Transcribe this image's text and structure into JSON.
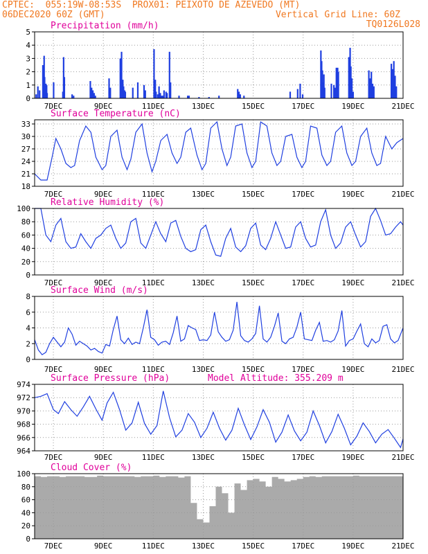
{
  "header": {
    "line1": "CPTEC:  055:19W-08:53S  PROX01: PEIXOTO DE AZEVEDO (MT)",
    "line2_left": "06DEC2020 60Z (GMT)",
    "line2_right": "Vertical Grid Line: 60Z",
    "line3_right": "TQ0126L028"
  },
  "colors": {
    "header": "#f07820",
    "title": "#e0009a",
    "series": "#1f3fe0",
    "cloud": "#aaaaaa",
    "grid": "#999999"
  },
  "chart_data": [
    {
      "type": "bar",
      "title": "Precipitation (mm/h)",
      "ylim": [
        0,
        5
      ],
      "yticks": [
        0,
        1,
        2,
        3,
        4,
        5
      ],
      "xlim": [
        6.25,
        21.0
      ],
      "xtick_labels": [
        "7DEC",
        "9DEC",
        "11DEC",
        "13DEC",
        "15DEC",
        "17DEC",
        "19DEC",
        "21DEC"
      ],
      "x": [
        6.28,
        6.35,
        6.42,
        6.55,
        6.6,
        6.62,
        6.67,
        6.7,
        6.72,
        6.98,
        7.35,
        7.38,
        7.41,
        7.72,
        7.78,
        8.45,
        8.5,
        8.55,
        8.6,
        8.65,
        9.2,
        9.25,
        9.65,
        9.7,
        9.75,
        9.78,
        9.82,
        9.85,
        10.15,
        10.35,
        10.6,
        10.65,
        11.0,
        11.05,
        11.08,
        11.15,
        11.2,
        11.25,
        11.3,
        11.35,
        11.4,
        11.48,
        11.52,
        11.62,
        11.66,
        12.0,
        12.35,
        12.4,
        12.8,
        13.2,
        13.6,
        14.35,
        14.4,
        14.45,
        14.6,
        16.45,
        16.75,
        16.85,
        16.95,
        17.68,
        17.71,
        17.74,
        17.77,
        17.8,
        17.83,
        18.1,
        18.2,
        18.25,
        18.3,
        18.32,
        18.35,
        18.38,
        18.8,
        18.85,
        18.88,
        18.92,
        18.97,
        19.6,
        19.65,
        19.7,
        19.75,
        19.8,
        20.5,
        20.55,
        20.6,
        20.65,
        20.7
      ],
      "values": [
        0.3,
        0.9,
        0.6,
        2.5,
        3.2,
        1.6,
        1.1,
        1.0,
        0.4,
        1.2,
        0.5,
        3.1,
        1.6,
        0.3,
        0.2,
        1.3,
        0.8,
        0.6,
        0.4,
        0.2,
        1.5,
        0.8,
        3.0,
        3.5,
        1.4,
        0.9,
        0.6,
        0.5,
        0.8,
        1.2,
        1.0,
        0.6,
        3.7,
        1.4,
        0.5,
        0.3,
        0.9,
        0.4,
        0.2,
        0.2,
        0.6,
        0.5,
        0.4,
        3.5,
        1.2,
        0.2,
        0.2,
        0.2,
        0.1,
        0.1,
        0.2,
        0.7,
        0.5,
        0.3,
        0.2,
        0.5,
        0.7,
        1.1,
        0.3,
        3.6,
        2.8,
        2.1,
        1.2,
        1.8,
        0.8,
        1.1,
        1.0,
        0.8,
        2.3,
        1.7,
        2.3,
        2.0,
        3.1,
        3.8,
        2.4,
        1.5,
        0.5,
        2.1,
        1.5,
        2.0,
        1.1,
        0.9,
        2.6,
        2.2,
        2.8,
        1.7,
        0.9
      ]
    },
    {
      "type": "line",
      "title": "Surface Temperature (nC)",
      "ylim": [
        18,
        34
      ],
      "yticks": [
        18,
        21,
        24,
        27,
        30,
        33
      ],
      "xlim": [
        6.25,
        21.0
      ],
      "xtick_labels": [
        "7DEC",
        "9DEC",
        "11DEC",
        "13DEC",
        "15DEC",
        "17DEC",
        "19DEC",
        "21DEC"
      ],
      "x": [
        6.25,
        6.5,
        6.75,
        6.95,
        7.1,
        7.3,
        7.5,
        7.7,
        7.85,
        8.05,
        8.3,
        8.5,
        8.7,
        8.95,
        9.1,
        9.3,
        9.55,
        9.75,
        9.95,
        10.1,
        10.3,
        10.55,
        10.75,
        10.95,
        11.1,
        11.3,
        11.55,
        11.75,
        11.95,
        12.1,
        12.3,
        12.5,
        12.75,
        12.95,
        13.1,
        13.3,
        13.55,
        13.75,
        13.95,
        14.1,
        14.3,
        14.55,
        14.75,
        14.95,
        15.1,
        15.3,
        15.55,
        15.75,
        15.95,
        16.1,
        16.3,
        16.55,
        16.75,
        16.95,
        17.1,
        17.3,
        17.55,
        17.75,
        17.95,
        18.1,
        18.3,
        18.55,
        18.75,
        18.95,
        19.1,
        19.3,
        19.55,
        19.75,
        19.95,
        20.1,
        20.3,
        20.55,
        20.75,
        21.0
      ],
      "values": [
        21,
        19.5,
        19.5,
        25,
        29.5,
        27,
        23.5,
        22.5,
        23,
        29,
        32.5,
        31,
        25,
        22,
        23,
        30,
        31.5,
        25,
        22,
        24.5,
        31,
        33,
        26,
        21.5,
        24,
        29,
        30.5,
        26,
        23.5,
        25,
        31,
        32,
        25.5,
        22,
        23.5,
        32,
        33.5,
        27,
        23,
        25,
        32.5,
        33,
        26,
        22.5,
        24,
        33.5,
        32.5,
        26,
        23,
        24,
        30,
        30.5,
        25,
        22.5,
        24,
        32.5,
        32,
        25.5,
        23,
        24,
        31,
        32.5,
        26,
        23,
        24,
        30,
        32,
        26,
        23,
        23.5,
        30,
        27,
        28.5,
        29.5
      ]
    },
    {
      "type": "line",
      "title": "Relative Humidity (%)",
      "ylim": [
        0,
        100
      ],
      "yticks": [
        0,
        20,
        40,
        60,
        80,
        100
      ],
      "xlim": [
        6.25,
        21.0
      ],
      "xtick_labels": [
        "7DEC",
        "9DEC",
        "11DEC",
        "13DEC",
        "15DEC",
        "17DEC",
        "19DEC",
        "21DEC"
      ],
      "x": [
        6.25,
        6.5,
        6.7,
        6.9,
        7.1,
        7.3,
        7.5,
        7.7,
        7.9,
        8.1,
        8.3,
        8.5,
        8.7,
        8.9,
        9.1,
        9.3,
        9.5,
        9.7,
        9.9,
        10.1,
        10.3,
        10.5,
        10.7,
        10.9,
        11.1,
        11.3,
        11.5,
        11.7,
        11.9,
        12.1,
        12.3,
        12.5,
        12.7,
        12.9,
        13.1,
        13.3,
        13.5,
        13.7,
        13.9,
        14.1,
        14.3,
        14.5,
        14.7,
        14.9,
        15.1,
        15.3,
        15.5,
        15.7,
        15.9,
        16.1,
        16.3,
        16.5,
        16.7,
        16.9,
        17.1,
        17.3,
        17.5,
        17.7,
        17.9,
        18.1,
        18.3,
        18.5,
        18.7,
        18.9,
        19.1,
        19.3,
        19.5,
        19.7,
        19.9,
        20.1,
        20.3,
        20.5,
        20.7,
        20.9,
        21.0
      ],
      "values": [
        100,
        100,
        60,
        50,
        75,
        85,
        50,
        40,
        42,
        62,
        50,
        40,
        55,
        60,
        70,
        75,
        55,
        40,
        48,
        80,
        85,
        48,
        40,
        60,
        80,
        62,
        50,
        78,
        82,
        58,
        40,
        35,
        38,
        68,
        75,
        50,
        30,
        28,
        55,
        70,
        42,
        35,
        44,
        70,
        78,
        45,
        38,
        55,
        80,
        60,
        40,
        42,
        72,
        80,
        55,
        42,
        45,
        80,
        98,
        60,
        40,
        48,
        72,
        80,
        60,
        42,
        50,
        88,
        100,
        82,
        60,
        62,
        72,
        80,
        75
      ]
    },
    {
      "type": "line",
      "title": "Surface Wind (m/s)",
      "ylim": [
        0,
        8
      ],
      "yticks": [
        0,
        2,
        4,
        6,
        8
      ],
      "xlim": [
        6.25,
        21.0
      ],
      "xtick_labels": [
        "7DEC",
        "9DEC",
        "11DEC",
        "13DEC",
        "15DEC",
        "17DEC",
        "19DEC",
        "21DEC"
      ],
      "x": [
        6.25,
        6.4,
        6.55,
        6.7,
        6.85,
        7.0,
        7.15,
        7.3,
        7.45,
        7.6,
        7.75,
        7.9,
        8.05,
        8.2,
        8.35,
        8.5,
        8.65,
        8.8,
        8.95,
        9.1,
        9.25,
        9.4,
        9.55,
        9.7,
        9.85,
        10.0,
        10.15,
        10.3,
        10.45,
        10.6,
        10.75,
        10.9,
        11.05,
        11.2,
        11.35,
        11.5,
        11.65,
        11.8,
        11.95,
        12.1,
        12.25,
        12.4,
        12.55,
        12.7,
        12.85,
        13.0,
        13.15,
        13.3,
        13.45,
        13.6,
        13.75,
        13.9,
        14.05,
        14.2,
        14.35,
        14.5,
        14.65,
        14.8,
        14.95,
        15.1,
        15.25,
        15.4,
        15.55,
        15.7,
        15.85,
        16.0,
        16.15,
        16.3,
        16.45,
        16.6,
        16.75,
        16.9,
        17.05,
        17.2,
        17.35,
        17.5,
        17.65,
        17.8,
        17.95,
        18.1,
        18.25,
        18.4,
        18.55,
        18.7,
        18.85,
        19.0,
        19.15,
        19.3,
        19.45,
        19.6,
        19.75,
        19.9,
        20.05,
        20.2,
        20.35,
        20.5,
        20.65,
        20.8,
        21.0
      ],
      "values": [
        2.5,
        1.2,
        0.6,
        0.9,
        2.0,
        2.8,
        2.2,
        1.6,
        2.2,
        4.0,
        3.2,
        1.8,
        2.3,
        2.0,
        1.7,
        1.2,
        1.4,
        1.0,
        0.8,
        1.9,
        1.7,
        3.8,
        5.5,
        2.5,
        2.0,
        2.7,
        1.9,
        2.2,
        2.0,
        4.0,
        6.3,
        2.8,
        2.5,
        1.8,
        2.2,
        2.3,
        1.9,
        3.4,
        5.5,
        2.3,
        2.6,
        4.3,
        4.0,
        3.8,
        2.4,
        2.5,
        2.4,
        3.1,
        6.0,
        3.5,
        2.8,
        2.3,
        2.5,
        3.7,
        7.3,
        3.0,
        2.4,
        2.2,
        2.6,
        3.3,
        6.8,
        2.6,
        2.2,
        2.8,
        4.2,
        5.9,
        2.3,
        2.0,
        2.6,
        2.8,
        4.1,
        6.0,
        2.6,
        2.5,
        2.4,
        3.7,
        4.7,
        2.3,
        2.4,
        2.2,
        2.5,
        3.6,
        6.2,
        1.7,
        2.4,
        2.6,
        3.6,
        4.5,
        2.0,
        1.6,
        2.6,
        2.1,
        2.4,
        4.2,
        4.4,
        2.6,
        2.1,
        2.4,
        4.0
      ]
    },
    {
      "type": "line",
      "title": "Surface Pressure (hPa)",
      "annotation": "Model Altitude: 355.209 m",
      "ylim": [
        964,
        974
      ],
      "yticks": [
        964,
        966,
        968,
        970,
        972,
        974
      ],
      "xlim": [
        6.25,
        21.0
      ],
      "xtick_labels": [
        "7DEC",
        "9DEC",
        "11DEC",
        "13DEC",
        "15DEC",
        "17DEC",
        "19DEC",
        "21DEC"
      ],
      "x": [
        6.25,
        6.5,
        6.75,
        7.0,
        7.2,
        7.45,
        7.7,
        7.95,
        8.2,
        8.45,
        8.7,
        8.95,
        9.15,
        9.4,
        9.65,
        9.9,
        10.15,
        10.4,
        10.65,
        10.9,
        11.15,
        11.4,
        11.65,
        11.9,
        12.15,
        12.4,
        12.65,
        12.9,
        13.15,
        13.4,
        13.65,
        13.9,
        14.15,
        14.4,
        14.65,
        14.9,
        15.15,
        15.4,
        15.65,
        15.9,
        16.15,
        16.4,
        16.65,
        16.9,
        17.15,
        17.4,
        17.65,
        17.9,
        18.15,
        18.4,
        18.65,
        18.9,
        19.15,
        19.4,
        19.65,
        19.9,
        20.15,
        20.4,
        20.65,
        20.9,
        21.0
      ],
      "values": [
        972,
        972.2,
        972.6,
        970.2,
        969.6,
        971.4,
        970.2,
        969.2,
        970.6,
        972.2,
        970.3,
        968.6,
        971.2,
        972.8,
        970.2,
        967.1,
        968.2,
        971.3,
        968.1,
        966.5,
        967.8,
        973.0,
        969.0,
        966.1,
        967.1,
        969.6,
        968.3,
        966.0,
        967.4,
        969.8,
        967.4,
        965.6,
        967.1,
        970.4,
        967.9,
        965.7,
        967.6,
        970.2,
        968.3,
        965.3,
        966.8,
        969.4,
        967.0,
        965.5,
        966.8,
        970.0,
        967.8,
        965.2,
        966.9,
        969.5,
        967.4,
        964.9,
        966.2,
        968.2,
        966.9,
        965.2,
        966.5,
        967.2,
        965.9,
        964.5,
        965.8
      ]
    },
    {
      "type": "bar",
      "title": "Cloud Cover (%)",
      "ylim": [
        0,
        100
      ],
      "yticks": [
        0,
        20,
        40,
        60,
        80,
        100
      ],
      "xlim": [
        6.25,
        21.0
      ],
      "xtick_labels": [
        "7DEC",
        "9DEC",
        "11DEC",
        "13DEC",
        "15DEC",
        "17DEC",
        "19DEC",
        "21DEC"
      ],
      "x": [
        6.25,
        6.5,
        6.75,
        7.0,
        7.25,
        7.5,
        7.75,
        8.0,
        8.25,
        8.5,
        8.75,
        9.0,
        9.25,
        9.5,
        9.75,
        10.0,
        10.25,
        10.5,
        10.75,
        11.0,
        11.25,
        11.5,
        11.75,
        12.0,
        12.25,
        12.5,
        12.75,
        13.0,
        13.25,
        13.5,
        13.75,
        14.0,
        14.25,
        14.5,
        14.75,
        15.0,
        15.25,
        15.5,
        15.75,
        16.0,
        16.25,
        16.5,
        16.75,
        17.0,
        17.25,
        17.5,
        17.75,
        18.0,
        18.25,
        18.5,
        18.75,
        19.0,
        19.25,
        19.5,
        19.75,
        20.0,
        20.25,
        20.5,
        20.75
      ],
      "values": [
        96,
        95,
        96,
        96,
        95,
        96,
        96,
        96,
        95,
        95,
        97,
        96,
        96,
        96,
        96,
        96,
        95,
        96,
        96,
        97,
        95,
        96,
        96,
        94,
        96,
        55,
        30,
        25,
        50,
        80,
        70,
        40,
        85,
        75,
        90,
        92,
        88,
        80,
        95,
        92,
        88,
        90,
        92,
        95,
        96,
        95,
        96,
        96,
        96,
        96,
        96,
        97,
        96,
        96,
        96,
        96,
        96,
        96,
        96
      ]
    }
  ]
}
